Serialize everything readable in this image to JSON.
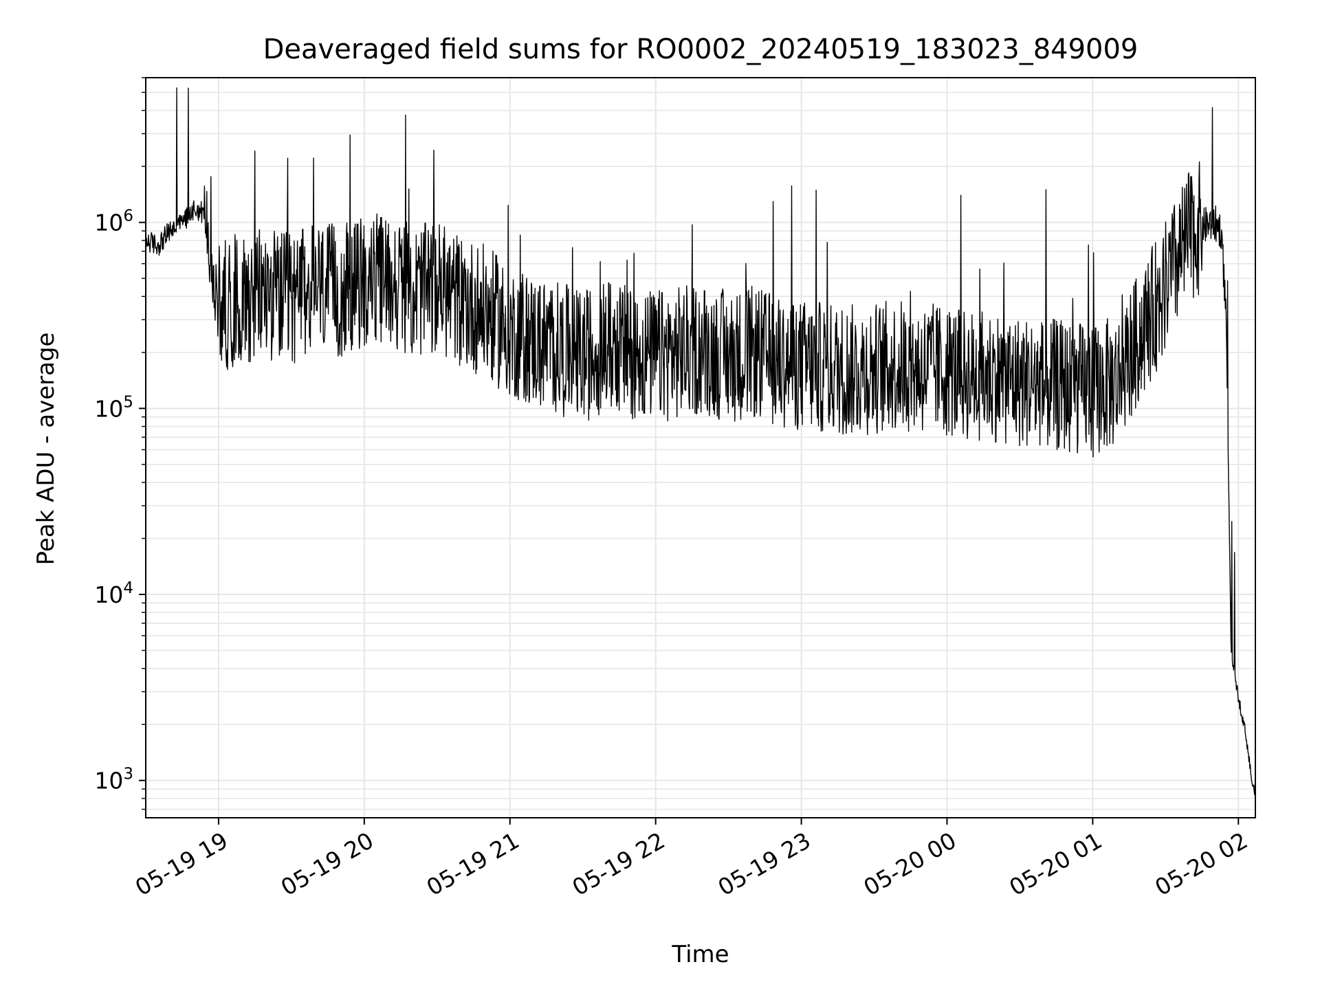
{
  "chart_data": {
    "type": "line",
    "title": "Deaveraged field sums for RO0002_20240519_183023_849009",
    "xlabel": "Time",
    "ylabel": "Peak ADU - average",
    "yscale": "log",
    "ylim": [
      630,
      6000000
    ],
    "xlim": [
      "2024-05-19 18:30",
      "2024-05-20 02:07"
    ],
    "grid": true,
    "legend": "none",
    "x_ticks": [
      {
        "t": "2024-05-19 19:00",
        "label": "05-19 19"
      },
      {
        "t": "2024-05-19 20:00",
        "label": "05-19 20"
      },
      {
        "t": "2024-05-19 21:00",
        "label": "05-19 21"
      },
      {
        "t": "2024-05-19 22:00",
        "label": "05-19 22"
      },
      {
        "t": "2024-05-19 23:00",
        "label": "05-19 23"
      },
      {
        "t": "2024-05-20 00:00",
        "label": "05-20 00"
      },
      {
        "t": "2024-05-20 01:00",
        "label": "05-20 01"
      },
      {
        "t": "2024-05-20 02:00",
        "label": "05-20 02"
      }
    ],
    "y_ticks": [
      {
        "value": 1000,
        "base": "10",
        "exp": "3"
      },
      {
        "value": 10000,
        "base": "10",
        "exp": "4"
      },
      {
        "value": 100000,
        "base": "10",
        "exp": "5"
      },
      {
        "value": 1000000,
        "base": "10",
        "exp": "6"
      }
    ],
    "line_color": "#000000",
    "grid_color": "#e6e6e6",
    "series": [
      {
        "x": [
          "2024-05-19 18:30",
          "2024-05-19 18:35",
          "2024-05-19 18:40",
          "2024-05-19 18:45",
          "2024-05-19 18:50",
          "2024-05-19 18:55",
          "2024-05-19 18:57",
          "2024-05-19 19:00",
          "2024-05-19 19:10",
          "2024-05-19 19:20",
          "2024-05-19 19:30",
          "2024-05-19 19:40",
          "2024-05-19 19:50",
          "2024-05-19 20:00",
          "2024-05-19 20:10",
          "2024-05-19 20:20",
          "2024-05-19 20:30",
          "2024-05-19 20:40",
          "2024-05-19 20:50",
          "2024-05-19 21:00",
          "2024-05-19 21:10",
          "2024-05-19 21:20",
          "2024-05-19 21:30",
          "2024-05-19 21:40",
          "2024-05-19 21:50",
          "2024-05-19 22:00",
          "2024-05-19 22:10",
          "2024-05-19 22:20",
          "2024-05-19 22:30",
          "2024-05-19 22:40",
          "2024-05-19 22:50",
          "2024-05-19 23:00",
          "2024-05-19 23:10",
          "2024-05-19 23:20",
          "2024-05-19 23:30",
          "2024-05-19 23:40",
          "2024-05-19 23:50",
          "2024-05-20 00:00",
          "2024-05-20 00:10",
          "2024-05-20 00:20",
          "2024-05-20 00:30",
          "2024-05-20 00:40",
          "2024-05-20 00:50",
          "2024-05-20 01:00",
          "2024-05-20 01:10",
          "2024-05-20 01:20",
          "2024-05-20 01:30",
          "2024-05-20 01:40",
          "2024-05-20 01:45",
          "2024-05-20 01:50",
          "2024-05-20 01:53",
          "2024-05-20 01:55",
          "2024-05-20 01:57",
          "2024-05-20 02:00",
          "2024-05-20 02:03",
          "2024-05-20 02:06"
        ],
        "y": [
          800000,
          750000,
          900000,
          1000000,
          1200000,
          1100000,
          500000,
          350000,
          400000,
          420000,
          380000,
          450000,
          420000,
          480000,
          500000,
          420000,
          450000,
          380000,
          330000,
          260000,
          230000,
          210000,
          190000,
          220000,
          200000,
          190000,
          200000,
          210000,
          190000,
          200000,
          180000,
          170000,
          165000,
          160000,
          165000,
          170000,
          165000,
          160000,
          150000,
          150000,
          140000,
          135000,
          130000,
          125000,
          140000,
          250000,
          450000,
          850000,
          950000,
          1000000,
          900000,
          300000,
          5000,
          2800,
          1800,
          900
        ]
      }
    ]
  }
}
